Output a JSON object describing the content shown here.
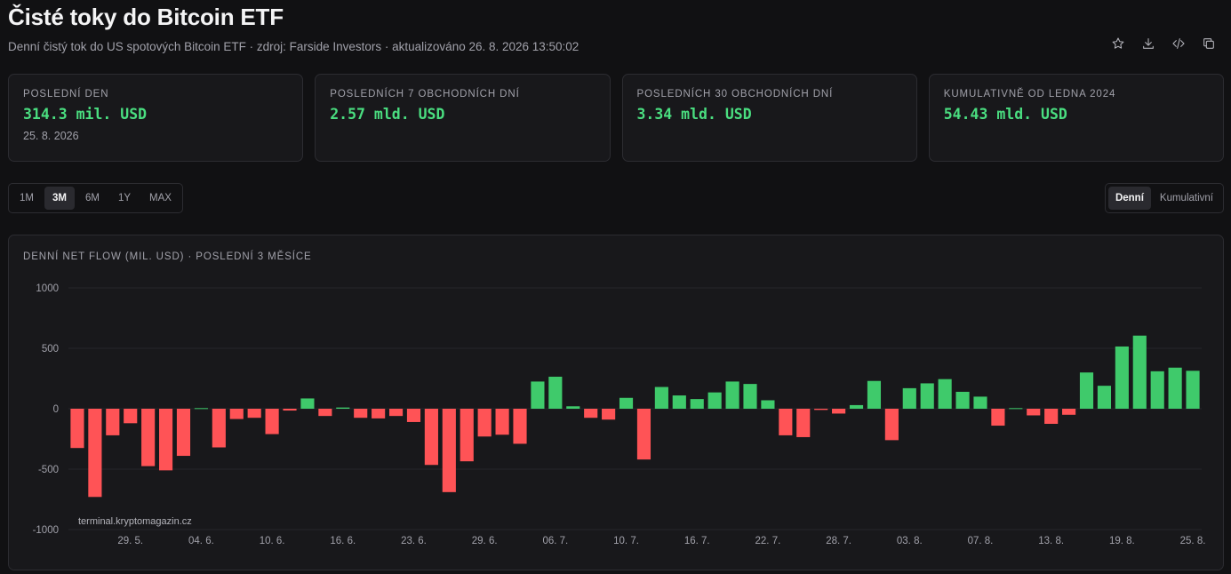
{
  "header": {
    "title": "Čisté toky do Bitcoin ETF",
    "subtitle": "Denní čistý tok do US spotových Bitcoin ETF · zdroj: Farside Investors · aktualizováno 26. 8. 2026 13:50:02"
  },
  "toolbar_icons": [
    "star-icon",
    "download-icon",
    "code-icon",
    "copy-icon"
  ],
  "cards": [
    {
      "label": "Poslední den",
      "value": "314.3 mil. USD",
      "sub": "25. 8. 2026"
    },
    {
      "label": "Posledních 7 obchodních dní",
      "value": "2.57 mld. USD",
      "sub": ""
    },
    {
      "label": "Posledních 30 obchodních dní",
      "value": "3.34 mld. USD",
      "sub": ""
    },
    {
      "label": "Kumulativně od ledna 2024",
      "value": "54.43 mld. USD",
      "sub": ""
    }
  ],
  "range_buttons": [
    "1M",
    "3M",
    "6M",
    "1Y",
    "MAX"
  ],
  "range_active": "3M",
  "mode_buttons": [
    "Denní",
    "Kumulativní"
  ],
  "mode_active": "Denní",
  "colors": {
    "positive": "#3fca6b",
    "negative": "#ff5356",
    "accent": "#4ade80",
    "grid": "#26262b"
  },
  "watermark": "terminal.kryptomagazin.cz",
  "chart_data": {
    "type": "bar",
    "title": "Denní net flow (mil. USD) · Poslední 3 měsíce",
    "xlabel": "",
    "ylabel": "",
    "ylim": [
      -1000,
      1000
    ],
    "yticks": [
      1000,
      500,
      0,
      -500,
      -1000
    ],
    "grid": true,
    "x_tick_labels": [
      "29. 5.",
      "04. 6.",
      "10. 6.",
      "16. 6.",
      "23. 6.",
      "29. 6.",
      "06. 7.",
      "10. 7.",
      "16. 7.",
      "22. 7.",
      "28. 7.",
      "03. 8.",
      "07. 8.",
      "13. 8.",
      "19. 8.",
      "25. 8."
    ],
    "x_tick_positions": [
      3,
      7,
      11,
      15,
      19,
      23,
      27,
      31,
      35,
      39,
      43,
      47,
      51,
      55,
      59,
      63
    ],
    "values": [
      -325,
      -730,
      -220,
      -120,
      -475,
      -510,
      -390,
      5,
      -320,
      -85,
      -75,
      -210,
      -15,
      85,
      -60,
      10,
      -75,
      -80,
      -60,
      -110,
      -465,
      -690,
      -435,
      -230,
      -215,
      -290,
      225,
      265,
      20,
      -75,
      -90,
      90,
      -420,
      180,
      110,
      80,
      135,
      225,
      205,
      70,
      -220,
      -235,
      -10,
      -40,
      30,
      230,
      -260,
      170,
      210,
      245,
      140,
      100,
      -140,
      5,
      -55,
      -125,
      -50,
      300,
      190,
      515,
      605,
      310,
      340,
      314
    ]
  }
}
